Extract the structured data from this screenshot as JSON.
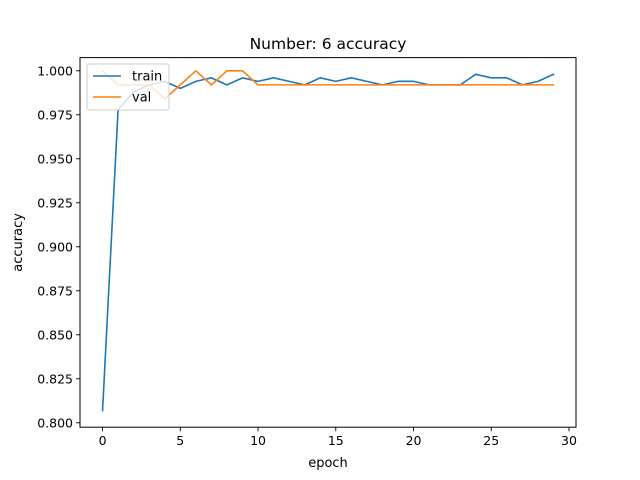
{
  "chart_data": {
    "type": "line",
    "title": "Number: 6 accuracy",
    "xlabel": "epoch",
    "ylabel": "accuracy",
    "xlim": [
      -1.45,
      30.45
    ],
    "ylim": [
      0.7975,
      1.0075
    ],
    "xticks": [
      0,
      5,
      10,
      15,
      20,
      25,
      30
    ],
    "yticks": [
      0.8,
      0.825,
      0.85,
      0.875,
      0.9,
      0.925,
      0.95,
      0.975,
      1.0
    ],
    "grid": false,
    "legend_position": "top-left",
    "x": [
      0,
      1,
      2,
      3,
      4,
      5,
      6,
      7,
      8,
      9,
      10,
      11,
      12,
      13,
      14,
      15,
      16,
      17,
      18,
      19,
      20,
      21,
      22,
      23,
      24,
      25,
      26,
      27,
      28,
      29
    ],
    "series": [
      {
        "name": "train",
        "color": "#1f77b4",
        "values": [
          0.807,
          0.978,
          0.988,
          0.992,
          0.994,
          0.99,
          0.994,
          0.996,
          0.992,
          0.996,
          0.994,
          0.996,
          0.994,
          0.992,
          0.996,
          0.994,
          0.996,
          0.994,
          0.992,
          0.994,
          0.994,
          0.992,
          0.992,
          0.992,
          0.998,
          0.996,
          0.996,
          0.992,
          0.994,
          0.998
        ]
      },
      {
        "name": "val",
        "color": "#ff7f0e",
        "values": [
          1.0,
          0.992,
          0.992,
          0.992,
          0.984,
          0.992,
          1.0,
          0.992,
          1.0,
          1.0,
          0.992,
          0.992,
          0.992,
          0.992,
          0.992,
          0.992,
          0.992,
          0.992,
          0.992,
          0.992,
          0.992,
          0.992,
          0.992,
          0.992,
          0.992,
          0.992,
          0.992,
          0.992,
          0.992,
          0.992
        ]
      }
    ]
  }
}
